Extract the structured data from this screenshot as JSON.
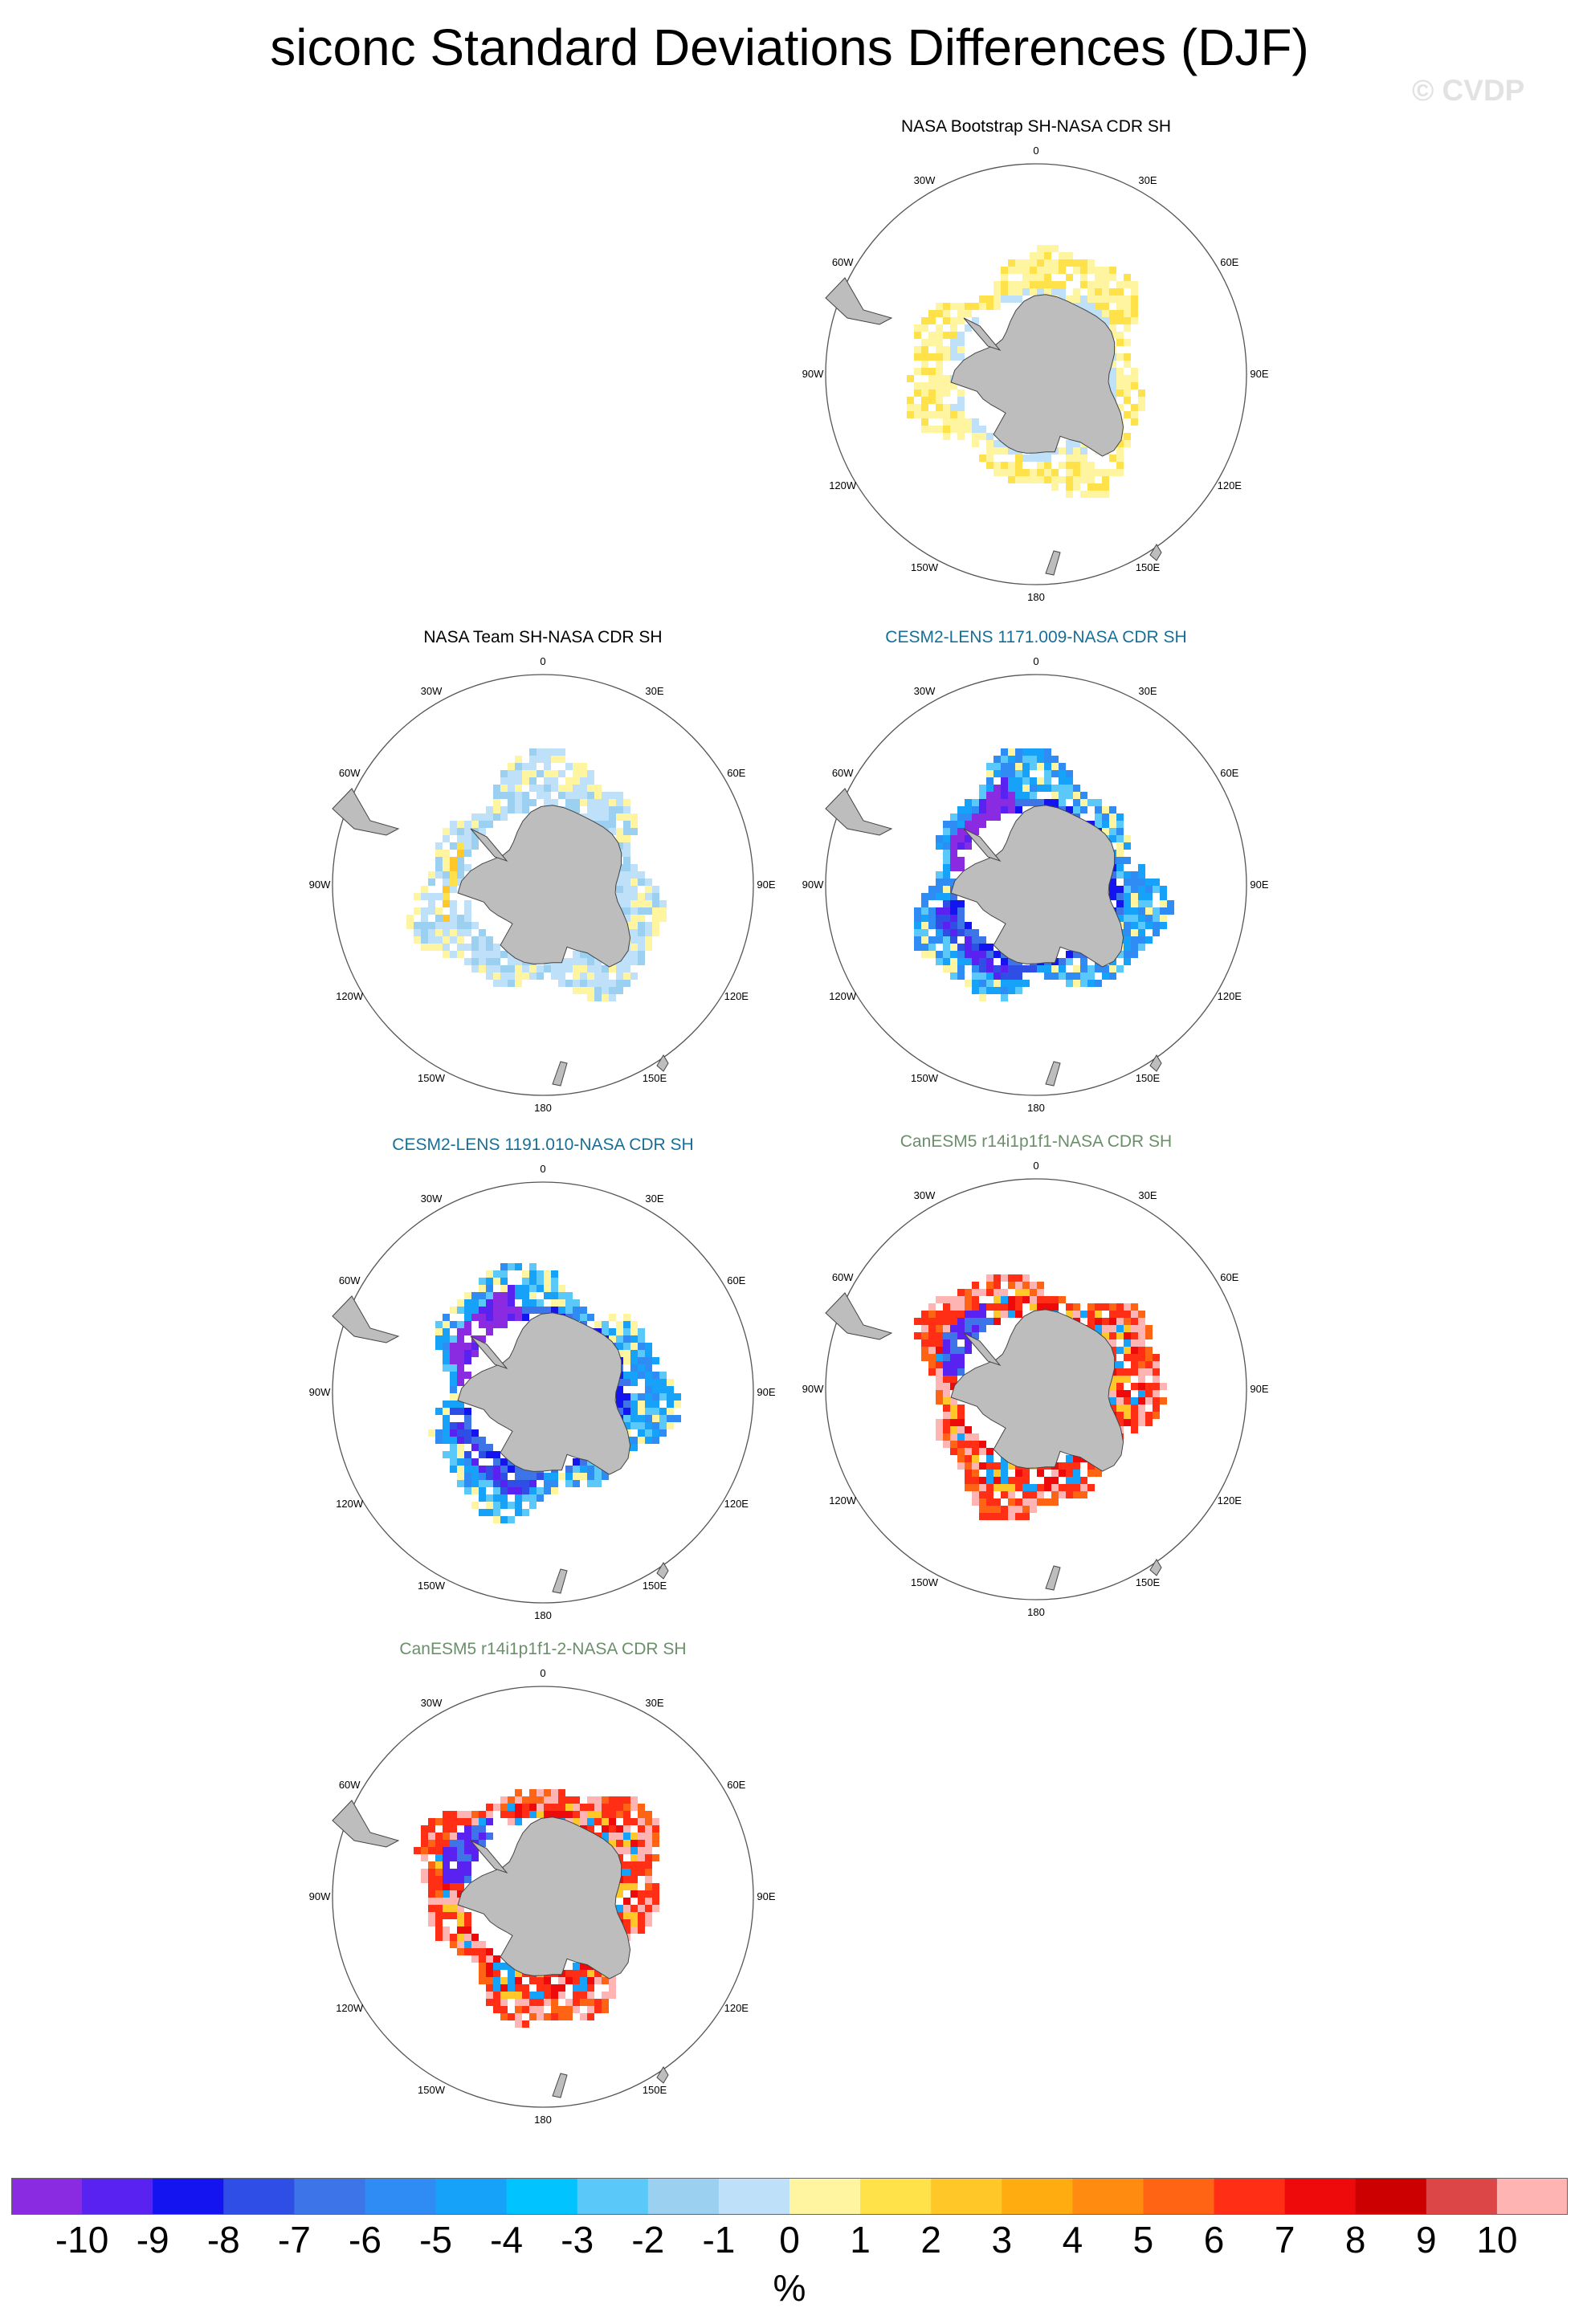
{
  "title": "siconc Standard Deviations Differences (DJF)",
  "watermark": "© CVDP",
  "lon_labels": [
    "0",
    "30E",
    "60E",
    "90E",
    "120E",
    "150E",
    "180",
    "150W",
    "120W",
    "90W",
    "60W",
    "30W"
  ],
  "panels": [
    {
      "title": "NASA Bootstrap SH-NASA CDR SH",
      "title_color": "#000000",
      "pattern": "bootstrap"
    },
    {
      "title": "NASA Team SH-NASA CDR SH",
      "title_color": "#000000",
      "pattern": "team"
    },
    {
      "title": "CESM2-LENS 1171.009-NASA CDR SH",
      "title_color": "#1a6e96",
      "pattern": "cesm_a"
    },
    {
      "title": "CESM2-LENS 1191.010-NASA CDR SH",
      "title_color": "#1a6e96",
      "pattern": "cesm_b"
    },
    {
      "title": "CanESM5 r14i1p1f1-NASA CDR SH",
      "title_color": "#6b8f6b",
      "pattern": "can_a"
    },
    {
      "title": "CanESM5 r14i1p1f1-2-NASA CDR SH",
      "title_color": "#6b8f6b",
      "pattern": "can_b"
    }
  ],
  "colorbar": {
    "labels": [
      "-10",
      "-9",
      "-8",
      "-7",
      "-6",
      "-5",
      "-4",
      "-3",
      "-2",
      "-1",
      "0",
      "1",
      "2",
      "3",
      "4",
      "5",
      "6",
      "7",
      "8",
      "9",
      "10"
    ],
    "colors": [
      "#8a2be2",
      "#5a22f0",
      "#1414f0",
      "#2f4ee6",
      "#3d74e8",
      "#2f8cf4",
      "#16a2f8",
      "#00c3ff",
      "#5ac8f8",
      "#9bd0f0",
      "#bee0f8",
      "#fff5a0",
      "#ffe14a",
      "#ffc728",
      "#ffac10",
      "#ff8c10",
      "#ff6414",
      "#ff2e14",
      "#ee0a0a",
      "#cc0000",
      "#dc4646",
      "#ffb4b4"
    ],
    "units": "%"
  }
}
